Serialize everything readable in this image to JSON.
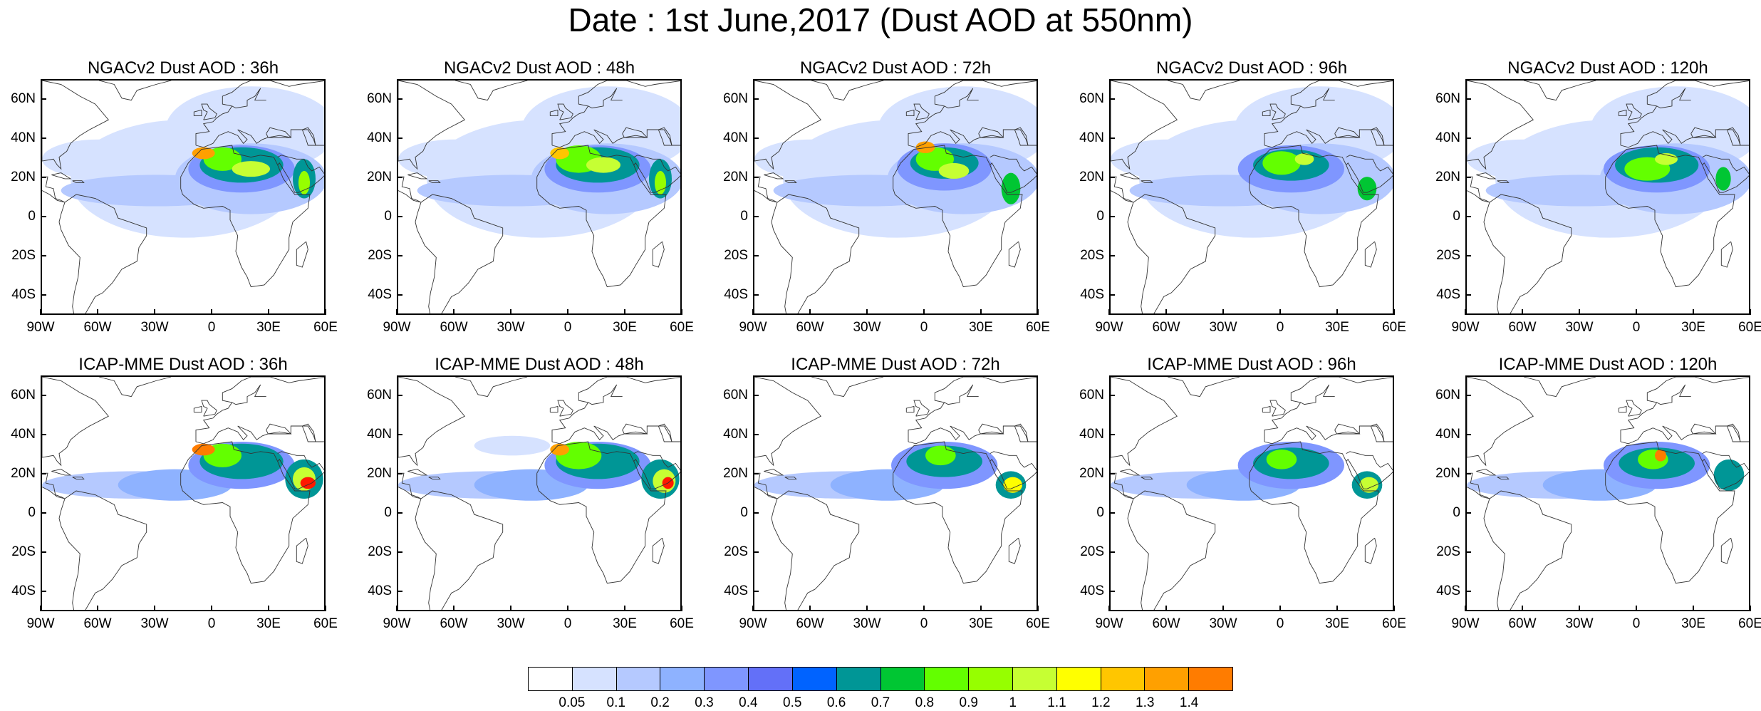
{
  "title": "Date : 1st June,2017 (Dust AOD at 550nm)",
  "lat_labels": [
    "60N",
    "40N",
    "20N",
    "0",
    "20S",
    "40S"
  ],
  "lon_labels": [
    "90W",
    "60W",
    "30W",
    "0",
    "30E",
    "60E"
  ],
  "panels": [
    {
      "title": "NGACv2 Dust AOD : 36h",
      "model": "NGACv2",
      "lead": "36h"
    },
    {
      "title": "NGACv2 Dust AOD : 48h",
      "model": "NGACv2",
      "lead": "48h"
    },
    {
      "title": "NGACv2 Dust AOD : 72h",
      "model": "NGACv2",
      "lead": "72h"
    },
    {
      "title": "NGACv2 Dust AOD : 96h",
      "model": "NGACv2",
      "lead": "96h"
    },
    {
      "title": "NGACv2 Dust AOD : 120h",
      "model": "NGACv2",
      "lead": "120h"
    },
    {
      "title": "ICAP-MME Dust AOD : 36h",
      "model": "ICAP-MME",
      "lead": "36h"
    },
    {
      "title": "ICAP-MME Dust AOD : 48h",
      "model": "ICAP-MME",
      "lead": "48h"
    },
    {
      "title": "ICAP-MME Dust AOD : 72h",
      "model": "ICAP-MME",
      "lead": "72h"
    },
    {
      "title": "ICAP-MME Dust AOD : 96h",
      "model": "ICAP-MME",
      "lead": "96h"
    },
    {
      "title": "ICAP-MME Dust AOD : 120h",
      "model": "ICAP-MME",
      "lead": "120h"
    }
  ],
  "colorbar": {
    "labels": [
      "0.05",
      "0.1",
      "0.2",
      "0.3",
      "0.4",
      "0.5",
      "0.6",
      "0.7",
      "0.8",
      "0.9",
      "1",
      "1.1",
      "1.2",
      "1.3",
      "1.4"
    ],
    "colors": [
      "#ffffff",
      "#d6e2ff",
      "#b5c9ff",
      "#8eb2ff",
      "#7f96ff",
      "#6370f8",
      "#0063ff",
      "#009696",
      "#00c633",
      "#63ff00",
      "#96ff00",
      "#c6ff33",
      "#ffff00",
      "#ffc600",
      "#ffa000",
      "#ff7c00",
      "#ff1900"
    ]
  },
  "extent": {
    "lon_min": -90,
    "lon_max": 60,
    "lat_min": -50,
    "lat_max": 70
  }
}
